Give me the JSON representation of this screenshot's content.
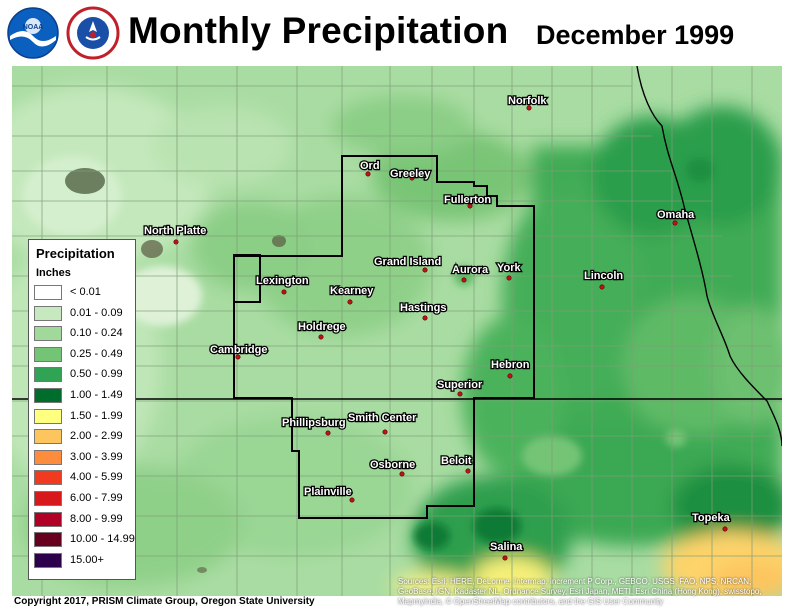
{
  "header": {
    "title": "Monthly Precipitation",
    "period": "December 1999",
    "logos": [
      {
        "name": "noaa-logo",
        "text": "NOAA"
      },
      {
        "name": "nws-logo",
        "text": "NATIONAL WEATHER SERVICE"
      }
    ]
  },
  "map": {
    "cities": [
      {
        "name": "Norfolk"
      },
      {
        "name": "Ord"
      },
      {
        "name": "Greeley"
      },
      {
        "name": "Fullerton"
      },
      {
        "name": "Omaha"
      },
      {
        "name": "North Platte"
      },
      {
        "name": "Grand Island"
      },
      {
        "name": "Aurora"
      },
      {
        "name": "York"
      },
      {
        "name": "Lincoln"
      },
      {
        "name": "Lexington"
      },
      {
        "name": "Kearney"
      },
      {
        "name": "Hastings"
      },
      {
        "name": "Holdrege"
      },
      {
        "name": "Cambridge"
      },
      {
        "name": "Hebron"
      },
      {
        "name": "Superior"
      },
      {
        "name": "Phillipsburg"
      },
      {
        "name": "Smith Center"
      },
      {
        "name": "Osborne"
      },
      {
        "name": "Beloit"
      },
      {
        "name": "Plainville"
      },
      {
        "name": "Topeka"
      },
      {
        "name": "Salina"
      }
    ]
  },
  "legend": {
    "title": "Precipitation",
    "unit": "Inches",
    "items": [
      {
        "label": "< 0.01",
        "color": "#ffffff"
      },
      {
        "label": "0.01 - 0.09",
        "color": "#c7e9c0"
      },
      {
        "label": "0.10 - 0.24",
        "color": "#a1d99b"
      },
      {
        "label": "0.25 - 0.49",
        "color": "#74c476"
      },
      {
        "label": "0.50 - 0.99",
        "color": "#31a354"
      },
      {
        "label": "1.00 - 1.49",
        "color": "#006d2c"
      },
      {
        "label": "1.50 - 1.99",
        "color": "#ffff80"
      },
      {
        "label": "2.00 - 2.99",
        "color": "#fdc55e"
      },
      {
        "label": "3.00 - 3.99",
        "color": "#fd8d3c"
      },
      {
        "label": "4.00 - 5.99",
        "color": "#f03b20"
      },
      {
        "label": "6.00 - 7.99",
        "color": "#d7191c"
      },
      {
        "label": "8.00 - 9.99",
        "color": "#b10026"
      },
      {
        "label": "10.00 - 14.99",
        "color": "#67001f"
      },
      {
        "label": "15.00+",
        "color": "#2d004b"
      }
    ]
  },
  "footer": {
    "copyright": "Copyright 2017, PRISM Climate Group, Oregon State University",
    "attribution": "Sources: Esri, HERE, DeLorme, Intermap, increment P Corp., GEBCO, USGS, FAO, NPS, NRCAN, GeoBase, IGN, Kadaster NL, Ordnance Survey, Esri Japan, METI, Esri China (Hong Kong), swisstopo, Mapmyindia, © OpenStreetMap contributors, and the GIS User Community"
  }
}
